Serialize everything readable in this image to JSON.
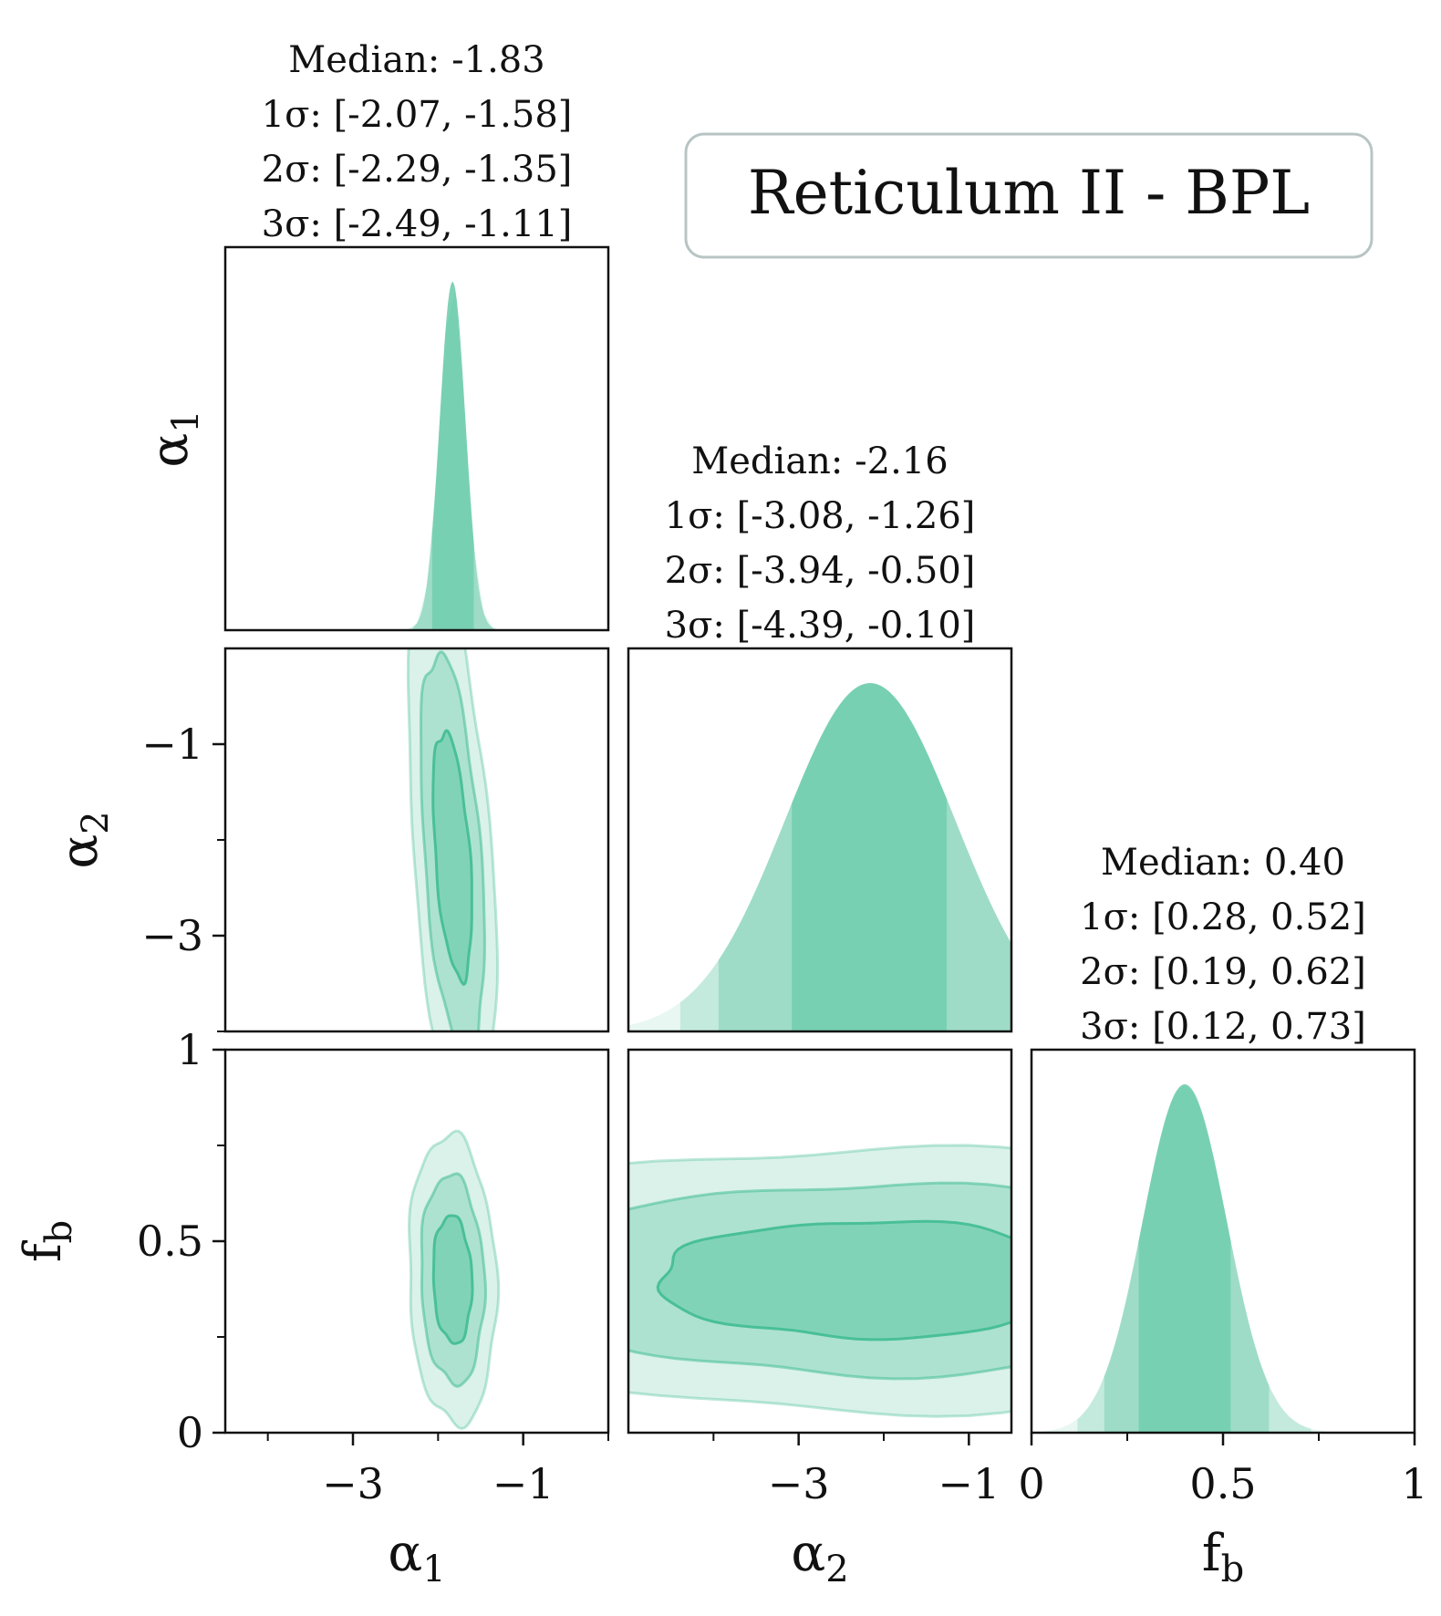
{
  "chart_data": {
    "type": "corner",
    "title": "Reticulum II - BPL",
    "color": "#45be95",
    "parameters": [
      {
        "key": "a1",
        "label_base": "α",
        "label_sub": "1",
        "range": [
          -4.5,
          0.0
        ],
        "ticks": [
          -3,
          -1
        ],
        "minor_ticks": [
          -4,
          -2,
          0
        ],
        "median": -1.83,
        "stats": [
          "Median: -1.83",
          "1σ: [-2.07, -1.58]",
          "2σ: [-2.29, -1.35]",
          "3σ: [-2.49, -1.11]"
        ],
        "intervals": {
          "s1": [
            -2.07,
            -1.58
          ],
          "s2": [
            -2.29,
            -1.35
          ],
          "s3": [
            -2.49,
            -1.11
          ]
        },
        "kde_sigma": 0.15
      },
      {
        "key": "a2",
        "label_base": "α",
        "label_sub": "2",
        "range": [
          -5.0,
          -0.5
        ],
        "ticks": [
          -3,
          -1
        ],
        "minor_ticks": [
          -4,
          -2
        ],
        "median": -2.16,
        "stats": [
          "Median: -2.16",
          "1σ: [-3.08, -1.26]",
          "2σ: [-3.94, -0.50]",
          "3σ: [-4.39, -0.10]"
        ],
        "intervals": {
          "s1": [
            -3.08,
            -1.26
          ],
          "s2": [
            -3.94,
            -0.5
          ],
          "s3": [
            -4.39,
            -0.1
          ]
        },
        "kde_sigma": 1.0
      },
      {
        "key": "fb",
        "label_base": "f",
        "label_sub": "b",
        "range": [
          0.0,
          1.0
        ],
        "ticks": [
          0,
          0.5,
          1
        ],
        "minor_ticks": [
          0.25,
          0.75
        ],
        "median": 0.4,
        "stats": [
          "Median: 0.40",
          "1σ: [0.28, 0.52]",
          "2σ: [0.19, 0.62]",
          "3σ: [0.12, 0.73]"
        ],
        "intervals": {
          "s1": [
            0.28,
            0.52
          ],
          "s2": [
            0.19,
            0.62
          ],
          "s3": [
            0.12,
            0.73
          ]
        },
        "kde_sigma": 0.11
      }
    ],
    "y_axis_ranges": {
      "a2": [
        -4.0,
        0.0
      ],
      "fb": [
        0.0,
        1.0
      ]
    },
    "correlations": {
      "a2_a1": -0.45,
      "fb_a1": -0.1,
      "fb_a2": 0.0
    },
    "joint_widths": {
      "a2_a1": {
        "a1": 0.15,
        "a2": 0.85
      },
      "fb_a1": {
        "a1": 0.15,
        "fb": 0.11
      },
      "fb_a2": {
        "a2": 1.65,
        "fb": 0.1
      }
    },
    "contour_levels": [
      "1σ",
      "2σ",
      "3σ"
    ]
  }
}
